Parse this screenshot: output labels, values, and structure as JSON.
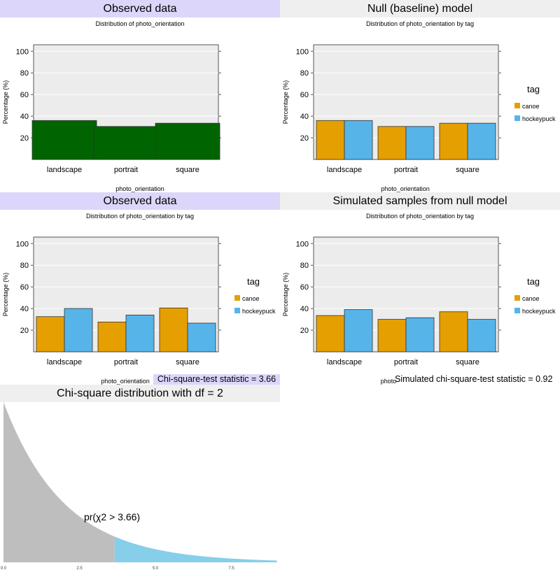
{
  "panels": [
    {
      "title": "Observed data",
      "subtitle": "Distribution of photo_orientation",
      "header_style": "purple"
    },
    {
      "title": "Null (baseline) model",
      "subtitle": "Distribution of photo_orientation by tag",
      "header_style": "gray"
    },
    {
      "title": "Observed data",
      "subtitle": "Distribution of photo_orientation by tag",
      "header_style": "purple"
    },
    {
      "title": "Simulated samples from null model",
      "subtitle": "Distribution of photo_orientation by tag",
      "header_style": "gray"
    },
    {
      "title": "Chi-square distribution with df = 2",
      "header_style": "gray"
    }
  ],
  "stats": {
    "observed": "Chi-square-test statistic = 3.66",
    "simulated": "Simulated chi-square-test statistic = 0.92"
  },
  "colors": {
    "observed_bar": "#006400",
    "canoe": "#e69f00",
    "hockeypuck": "#56b4e9",
    "plot_bg": "#ececec",
    "density_fill": "#bebebe",
    "tail_fill": "#87ceeb",
    "header_purple": "#dcd6fa",
    "header_gray": "#efefef"
  },
  "chart_data": [
    {
      "type": "bar",
      "title": "Observed data",
      "subtitle": "Distribution of photo_orientation",
      "categories": [
        "landscape",
        "portrait",
        "square"
      ],
      "series": [
        {
          "values": [
            36,
            30.5,
            33.5
          ]
        }
      ],
      "xlabel": "photo_orientation",
      "ylabel": "Percentage (%)",
      "yticks": [
        20,
        40,
        60,
        80,
        100
      ],
      "ylim": [
        0,
        106
      ]
    },
    {
      "type": "bar",
      "title": "Null (baseline) model",
      "subtitle": "Distribution of photo_orientation by tag",
      "categories": [
        "landscape",
        "portrait",
        "square"
      ],
      "series": [
        {
          "name": "canoe",
          "values": [
            36,
            30.5,
            33.5
          ]
        },
        {
          "name": "hockeypuck",
          "values": [
            36,
            30.5,
            33.5
          ]
        }
      ],
      "xlabel": "photo_orientation",
      "ylabel": "Percentage (%)",
      "legend_title": "tag",
      "yticks": [
        20,
        40,
        60,
        80,
        100
      ],
      "ylim": [
        0,
        106
      ]
    },
    {
      "type": "bar",
      "title": "Observed data",
      "subtitle": "Distribution of photo_orientation by tag",
      "categories": [
        "landscape",
        "portrait",
        "square"
      ],
      "series": [
        {
          "name": "canoe",
          "values": [
            32.5,
            27.5,
            40.5
          ]
        },
        {
          "name": "hockeypuck",
          "values": [
            40,
            34,
            26.5
          ]
        }
      ],
      "xlabel": "photo_orientation",
      "ylabel": "Percentage (%)",
      "legend_title": "tag",
      "yticks": [
        20,
        40,
        60,
        80,
        100
      ],
      "ylim": [
        0,
        106
      ]
    },
    {
      "type": "bar",
      "title": "Simulated samples from null model",
      "subtitle": "Distribution of photo_orientation by tag",
      "categories": [
        "landscape",
        "portrait",
        "square"
      ],
      "series": [
        {
          "name": "canoe",
          "values": [
            33.5,
            30,
            37
          ]
        },
        {
          "name": "hockeypuck",
          "values": [
            39,
            31.5,
            30
          ]
        }
      ],
      "xlabel": "photo",
      "ylabel": "Percentage (%)",
      "legend_title": "tag",
      "yticks": [
        20,
        40,
        60,
        80,
        100
      ],
      "ylim": [
        0,
        106
      ]
    },
    {
      "type": "area",
      "title": "Chi-square distribution with df = 2",
      "df": 2,
      "statistic": 3.66,
      "annotation": "pr(χ2 > 3.66)",
      "xticks": [
        "0.0",
        "2.5",
        "5.0",
        "7.5"
      ],
      "xlim": [
        0,
        9
      ]
    }
  ]
}
